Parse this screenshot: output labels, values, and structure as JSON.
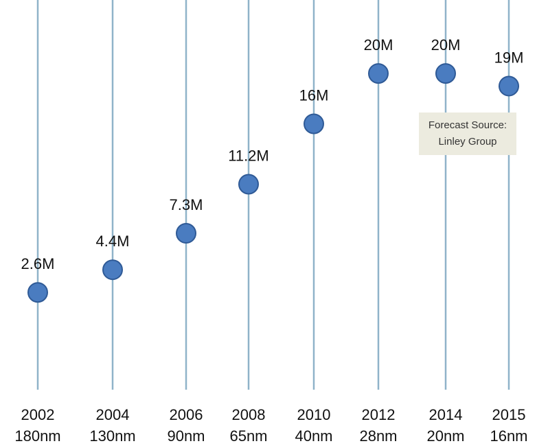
{
  "chart_data": {
    "type": "scatter",
    "title": "",
    "xlabel": "",
    "ylabel": "",
    "categories": [
      {
        "year": "2002",
        "node": "180nm"
      },
      {
        "year": "2004",
        "node": "130nm"
      },
      {
        "year": "2006",
        "node": "90nm"
      },
      {
        "year": "2008",
        "node": "65nm"
      },
      {
        "year": "2010",
        "node": "40nm"
      },
      {
        "year": "2012",
        "node": "28nm"
      },
      {
        "year": "2014",
        "node": "20nm"
      },
      {
        "year": "2015",
        "node": "16nm"
      }
    ],
    "values": [
      2.6,
      4.4,
      7.3,
      11.2,
      16,
      20,
      20,
      19
    ],
    "value_labels": [
      "2.6M",
      "4.4M",
      "7.3M",
      "11.2M",
      "16M",
      "20M",
      "20M",
      "19M"
    ],
    "grid": true,
    "colors": {
      "marker": "#4a7cc0",
      "marker_stroke": "#2f5a96",
      "stem": "#8fb3c9"
    },
    "annotation": {
      "line1": "Forecast Source:",
      "line2": "Linley Group"
    }
  }
}
